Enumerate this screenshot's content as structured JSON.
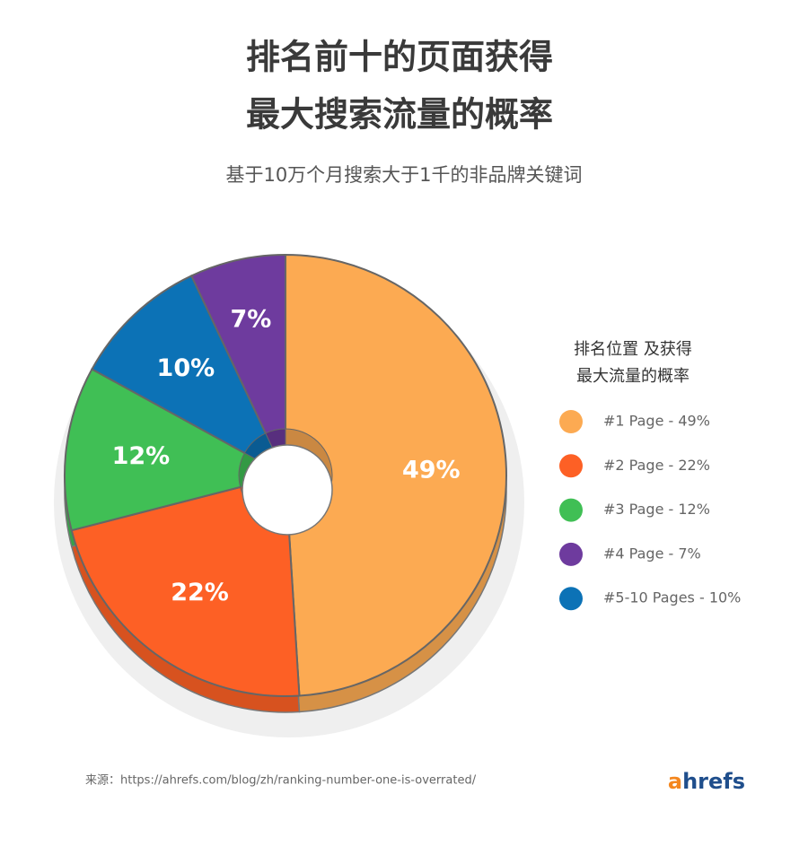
{
  "chart_data": {
    "type": "pie",
    "title": [
      "排名前十的页面获得",
      "最大搜索流量的概率"
    ],
    "subtitle": "基于10万个月搜索大于1千的非品牌关键词",
    "legend_title": [
      "排名位置 及获得",
      "最大流量的概率"
    ],
    "categories": [
      "#1 Page - 49%",
      "#2 Page - 22%",
      "#3 Page - 12%",
      "#4 Page - 7%",
      "#5-10 Pages  - 10%"
    ],
    "values": [
      49,
      22,
      12,
      7,
      10
    ],
    "value_labels": [
      "49%",
      "22%",
      "12%",
      "7%",
      "10%"
    ],
    "colors": [
      "#fcaa52",
      "#fd6025",
      "#40bf55",
      "#6e3b9e",
      "#0c72b6"
    ],
    "source": "来源：https://ahrefs.com/blog/zh/ranking-number-one-is-overrated/",
    "logo": "ahrefs",
    "legend": "right"
  }
}
